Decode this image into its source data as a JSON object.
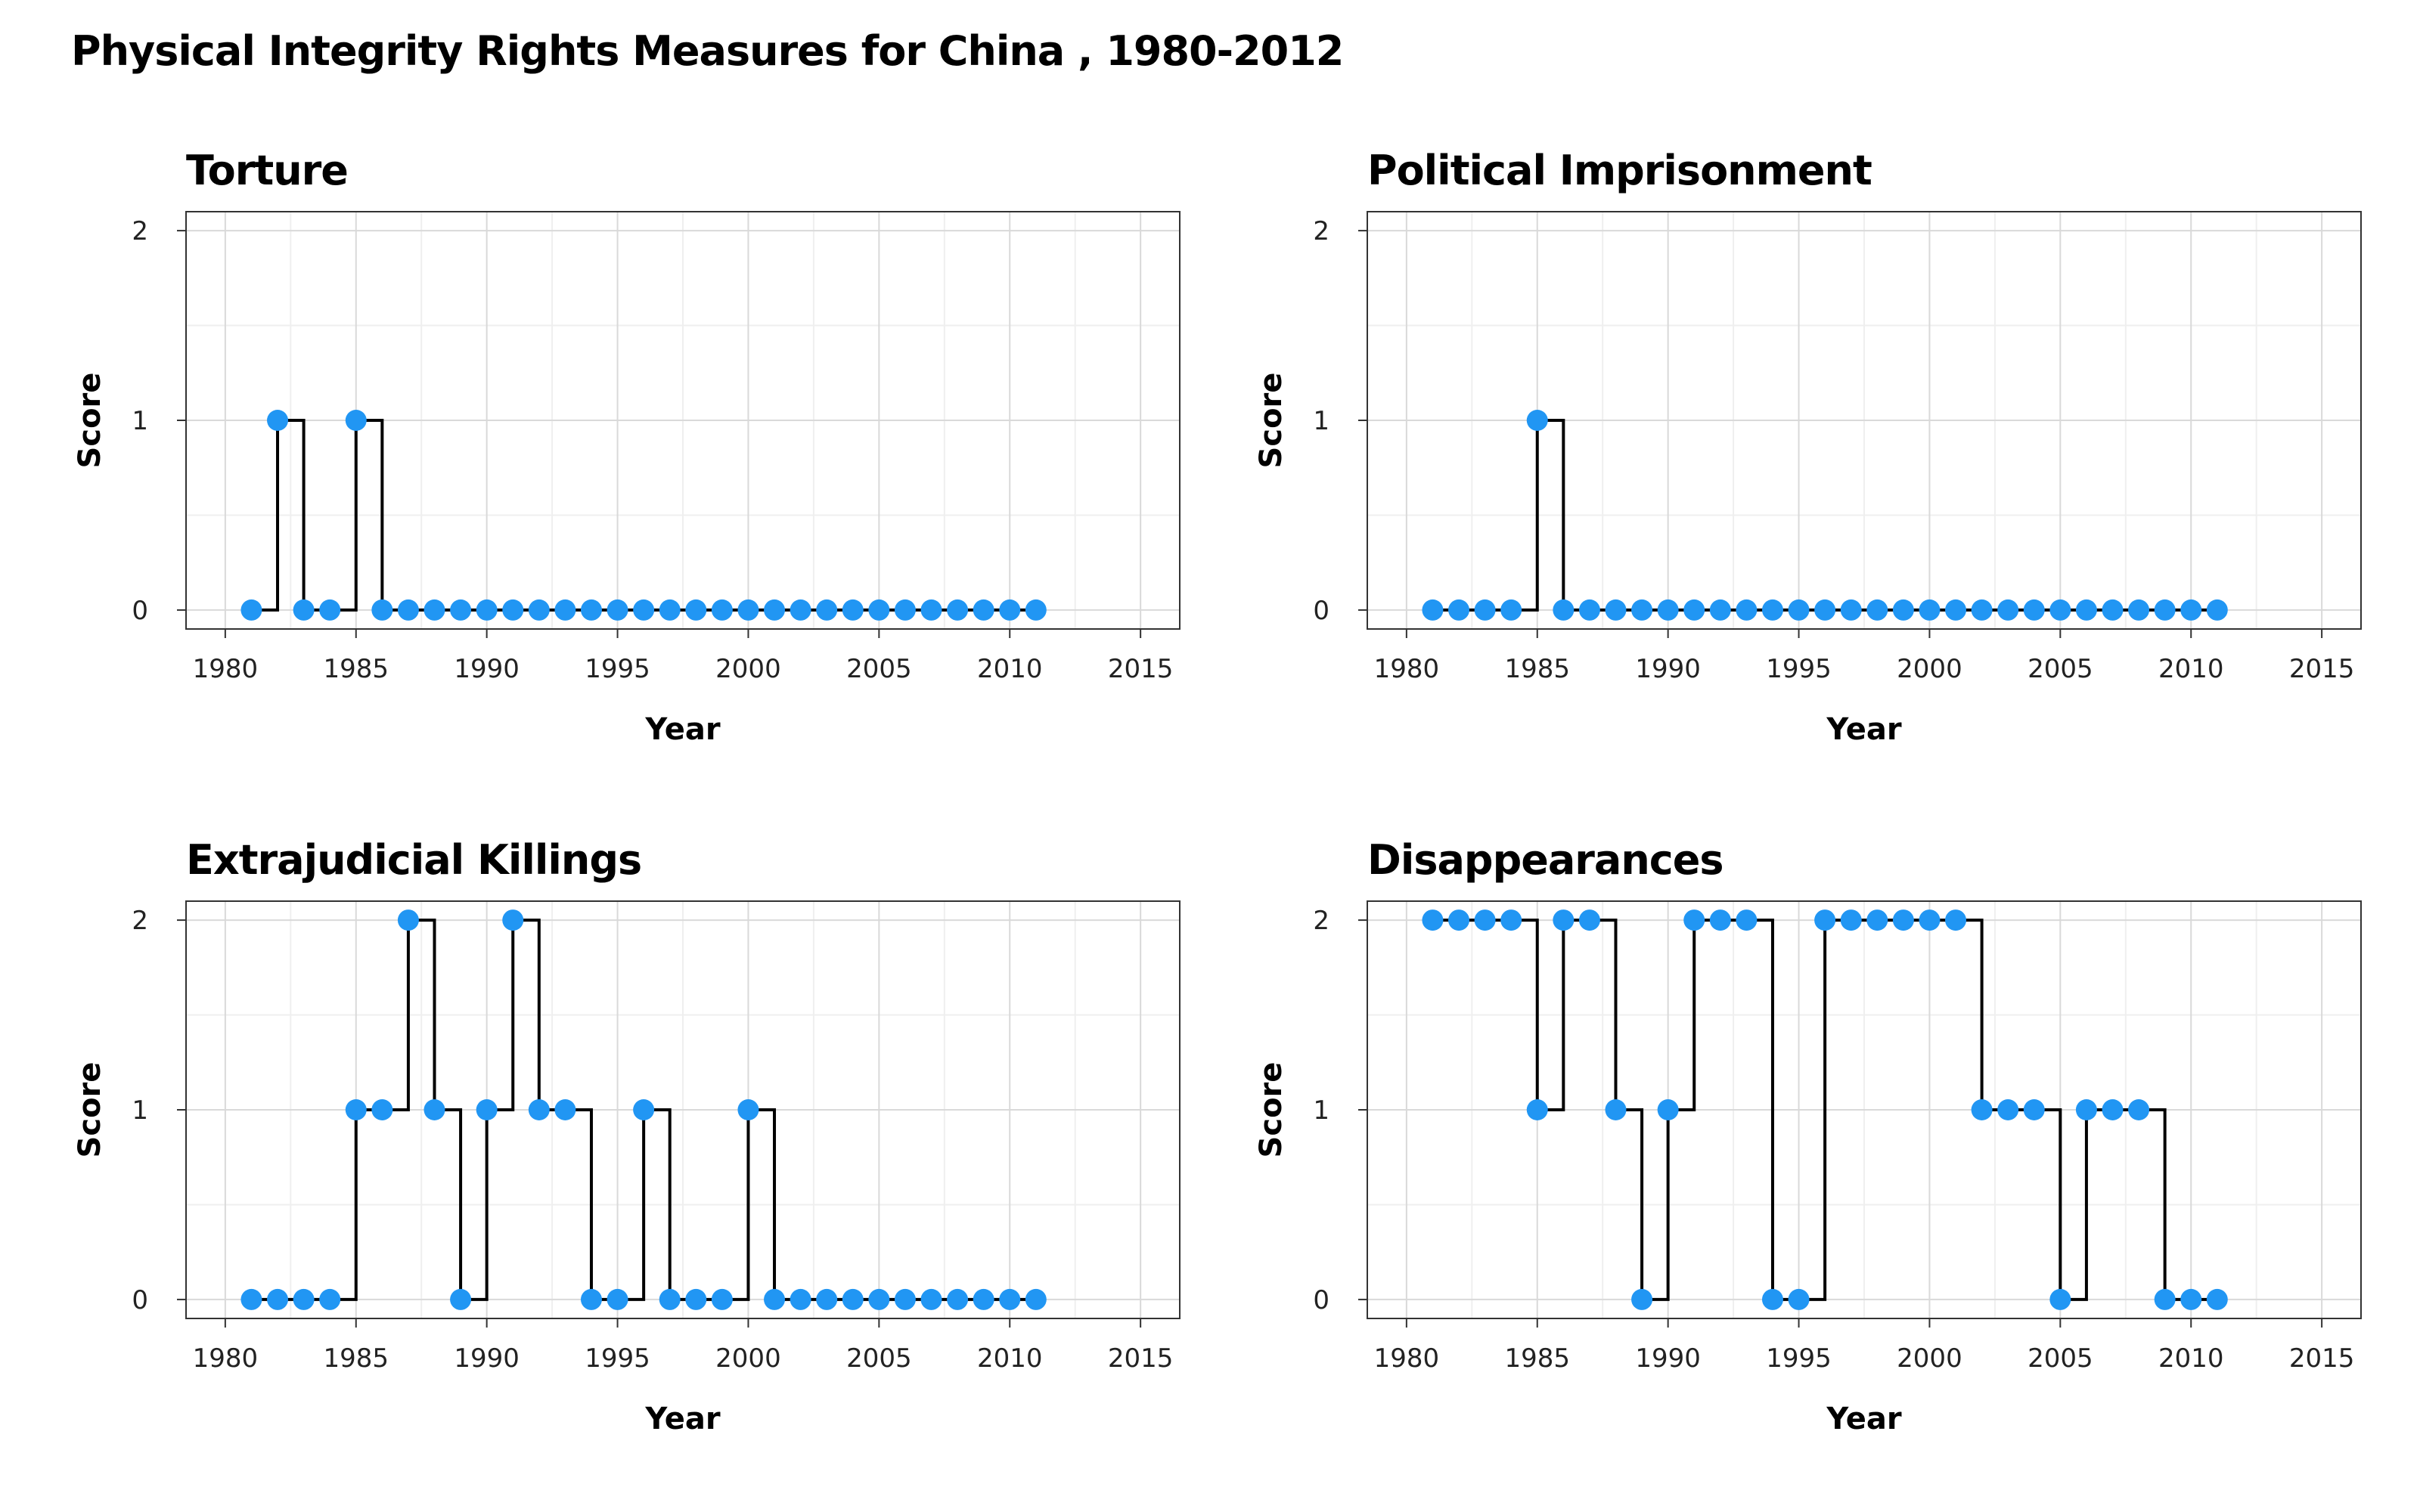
{
  "title": "Physical Integrity Rights Measures for China , 1980-2012",
  "colors": {
    "point": "#2196F3",
    "line": "#000000",
    "grid_major": "#d9d9d9",
    "grid_minor": "#efefef",
    "frame": "#333333"
  },
  "chart_data": [
    {
      "type": "line",
      "style": "step-with-points",
      "title": "Torture",
      "xlabel": "Year",
      "ylabel": "Score",
      "xlim": [
        1978.5,
        2016.5
      ],
      "ylim": [
        -0.1,
        2.1
      ],
      "xticks": [
        1980,
        1985,
        1990,
        1995,
        2000,
        2005,
        2010,
        2015
      ],
      "yticks": [
        0,
        1,
        2
      ],
      "grid": true,
      "x": [
        1981,
        1982,
        1983,
        1984,
        1985,
        1986,
        1987,
        1988,
        1989,
        1990,
        1991,
        1992,
        1993,
        1994,
        1995,
        1996,
        1997,
        1998,
        1999,
        2000,
        2001,
        2002,
        2003,
        2004,
        2005,
        2006,
        2007,
        2008,
        2009,
        2010,
        2011
      ],
      "y": [
        0,
        1,
        0,
        0,
        1,
        0,
        0,
        0,
        0,
        0,
        0,
        0,
        0,
        0,
        0,
        0,
        0,
        0,
        0,
        0,
        0,
        0,
        0,
        0,
        0,
        0,
        0,
        0,
        0,
        0,
        0
      ]
    },
    {
      "type": "line",
      "style": "step-with-points",
      "title": "Political Imprisonment",
      "xlabel": "Year",
      "ylabel": "Score",
      "xlim": [
        1978.5,
        2016.5
      ],
      "ylim": [
        -0.1,
        2.1
      ],
      "xticks": [
        1980,
        1985,
        1990,
        1995,
        2000,
        2005,
        2010,
        2015
      ],
      "yticks": [
        0,
        1,
        2
      ],
      "grid": true,
      "x": [
        1981,
        1982,
        1983,
        1984,
        1985,
        1986,
        1987,
        1988,
        1989,
        1990,
        1991,
        1992,
        1993,
        1994,
        1995,
        1996,
        1997,
        1998,
        1999,
        2000,
        2001,
        2002,
        2003,
        2004,
        2005,
        2006,
        2007,
        2008,
        2009,
        2010,
        2011
      ],
      "y": [
        0,
        0,
        0,
        0,
        1,
        0,
        0,
        0,
        0,
        0,
        0,
        0,
        0,
        0,
        0,
        0,
        0,
        0,
        0,
        0,
        0,
        0,
        0,
        0,
        0,
        0,
        0,
        0,
        0,
        0,
        0
      ]
    },
    {
      "type": "line",
      "style": "step-with-points",
      "title": "Extrajudicial Killings",
      "xlabel": "Year",
      "ylabel": "Score",
      "xlim": [
        1978.5,
        2016.5
      ],
      "ylim": [
        -0.1,
        2.1
      ],
      "xticks": [
        1980,
        1985,
        1990,
        1995,
        2000,
        2005,
        2010,
        2015
      ],
      "yticks": [
        0,
        1,
        2
      ],
      "grid": true,
      "x": [
        1981,
        1982,
        1983,
        1984,
        1985,
        1986,
        1987,
        1988,
        1989,
        1990,
        1991,
        1992,
        1993,
        1994,
        1995,
        1996,
        1997,
        1998,
        1999,
        2000,
        2001,
        2002,
        2003,
        2004,
        2005,
        2006,
        2007,
        2008,
        2009,
        2010,
        2011
      ],
      "y": [
        0,
        0,
        0,
        0,
        1,
        1,
        2,
        1,
        0,
        1,
        2,
        1,
        1,
        0,
        0,
        1,
        0,
        0,
        0,
        1,
        0,
        0,
        0,
        0,
        0,
        0,
        0,
        0,
        0,
        0,
        0
      ]
    },
    {
      "type": "line",
      "style": "step-with-points",
      "title": "Disappearances",
      "xlabel": "Year",
      "ylabel": "Score",
      "xlim": [
        1978.5,
        2016.5
      ],
      "ylim": [
        -0.1,
        2.1
      ],
      "xticks": [
        1980,
        1985,
        1990,
        1995,
        2000,
        2005,
        2010,
        2015
      ],
      "yticks": [
        0,
        1,
        2
      ],
      "grid": true,
      "x": [
        1981,
        1982,
        1983,
        1984,
        1985,
        1986,
        1987,
        1988,
        1989,
        1990,
        1991,
        1992,
        1993,
        1994,
        1995,
        1996,
        1997,
        1998,
        1999,
        2000,
        2001,
        2002,
        2003,
        2004,
        2005,
        2006,
        2007,
        2008,
        2009,
        2010,
        2011
      ],
      "y": [
        2,
        2,
        2,
        2,
        1,
        2,
        2,
        1,
        0,
        1,
        2,
        2,
        2,
        0,
        0,
        2,
        2,
        2,
        2,
        2,
        2,
        1,
        1,
        1,
        0,
        1,
        1,
        1,
        0,
        0,
        0
      ]
    }
  ]
}
